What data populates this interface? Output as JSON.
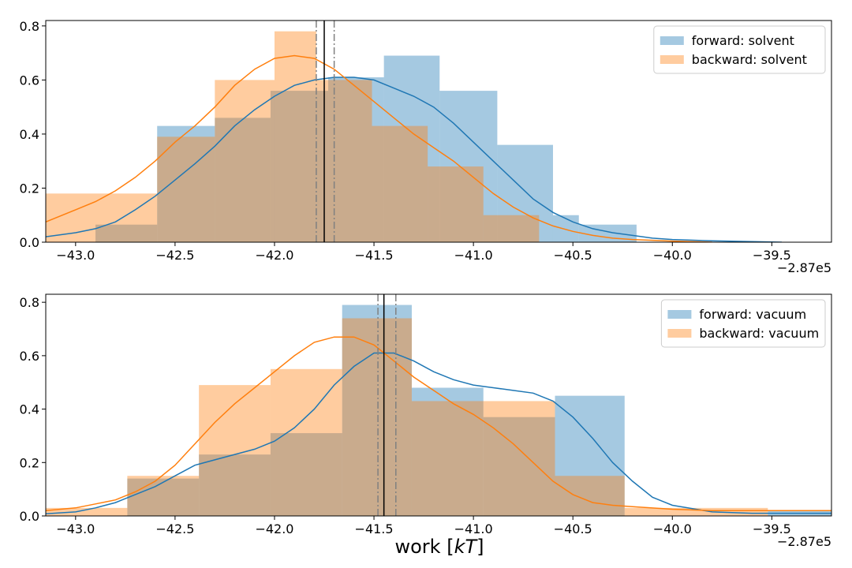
{
  "colors": {
    "forward": "#1f77b4",
    "backward": "#ff7f0e"
  },
  "chart_data": [
    {
      "type": "histogram",
      "title": "",
      "xlabel": "",
      "ylabel": "",
      "xlim": [
        -43.15,
        -39.2
      ],
      "ylim": [
        0,
        0.82
      ],
      "x_offset_label": "−2.87e5",
      "xticks": [
        -43.0,
        -42.5,
        -42.0,
        -41.5,
        -41.0,
        -40.5,
        -40.0,
        -39.5
      ],
      "xtick_labels": [
        "−43.0",
        "−42.5",
        "−42.0",
        "−41.5",
        "−41.0",
        "−40.5",
        "−40.0",
        "−39.5"
      ],
      "yticks": [
        0.0,
        0.2,
        0.4,
        0.6,
        0.8
      ],
      "ytick_labels": [
        "0.0",
        "0.2",
        "0.4",
        "0.6",
        "0.8"
      ],
      "legend": {
        "position": "top-right",
        "entries": [
          "forward: solvent",
          "backward: solvent"
        ]
      },
      "series": [
        {
          "name": "forward: solvent",
          "color_key": "forward",
          "bin_edges": [
            -42.9,
            -42.59,
            -42.3,
            -42.02,
            -41.73,
            -41.45,
            -41.17,
            -40.88,
            -40.6,
            -40.47,
            -40.18
          ],
          "values": [
            0.065,
            0.43,
            0.46,
            0.56,
            0.61,
            0.69,
            0.56,
            0.36,
            0.1,
            0.065
          ],
          "kde": {
            "x": [
              -43.15,
              -43.0,
              -42.9,
              -42.8,
              -42.7,
              -42.6,
              -42.5,
              -42.4,
              -42.3,
              -42.2,
              -42.1,
              -42.0,
              -41.9,
              -41.8,
              -41.7,
              -41.6,
              -41.5,
              -41.4,
              -41.3,
              -41.2,
              -41.1,
              -41.0,
              -40.9,
              -40.8,
              -40.7,
              -40.6,
              -40.5,
              -40.4,
              -40.3,
              -40.2,
              -40.1,
              -40.0,
              -39.8,
              -39.6,
              -39.45
            ],
            "y": [
              0.02,
              0.035,
              0.05,
              0.075,
              0.12,
              0.17,
              0.23,
              0.29,
              0.355,
              0.43,
              0.49,
              0.54,
              0.58,
              0.6,
              0.61,
              0.61,
              0.6,
              0.57,
              0.54,
              0.5,
              0.44,
              0.37,
              0.3,
              0.23,
              0.16,
              0.11,
              0.075,
              0.05,
              0.035,
              0.025,
              0.015,
              0.01,
              0.005,
              0.002,
              0.0
            ]
          }
        },
        {
          "name": "backward: solvent",
          "color_key": "backward",
          "bin_edges": [
            -43.15,
            -42.59,
            -42.3,
            -42.0,
            -41.79,
            -41.51,
            -41.23,
            -40.95,
            -40.67,
            -40.42
          ],
          "values": [
            0.18,
            0.39,
            0.6,
            0.78,
            0.6,
            0.43,
            0.28,
            0.1,
            0.0
          ],
          "kde": {
            "x": [
              -43.15,
              -43.0,
              -42.9,
              -42.8,
              -42.7,
              -42.6,
              -42.5,
              -42.4,
              -42.3,
              -42.2,
              -42.1,
              -42.0,
              -41.9,
              -41.8,
              -41.7,
              -41.6,
              -41.5,
              -41.4,
              -41.3,
              -41.2,
              -41.1,
              -41.0,
              -40.9,
              -40.8,
              -40.7,
              -40.6,
              -40.5,
              -40.4,
              -40.3,
              -40.2,
              -40.0,
              -39.8
            ],
            "y": [
              0.075,
              0.12,
              0.15,
              0.19,
              0.24,
              0.3,
              0.37,
              0.43,
              0.5,
              0.58,
              0.64,
              0.68,
              0.69,
              0.68,
              0.64,
              0.58,
              0.52,
              0.46,
              0.4,
              0.35,
              0.3,
              0.24,
              0.18,
              0.13,
              0.09,
              0.06,
              0.04,
              0.025,
              0.015,
              0.01,
              0.004,
              0.0
            ]
          }
        }
      ],
      "vlines": [
        {
          "x": -41.75,
          "style": "solid",
          "color": "#000000"
        },
        {
          "x": -41.79,
          "style": "dashdot",
          "color": "#808080"
        },
        {
          "x": -41.7,
          "style": "dashdot",
          "color": "#808080"
        }
      ]
    },
    {
      "type": "histogram",
      "title": "",
      "xlabel": "work [kT]",
      "ylabel": "",
      "xlim": [
        -43.15,
        -39.2
      ],
      "ylim": [
        0,
        0.83
      ],
      "x_offset_label": "−2.87e5",
      "xticks": [
        -43.0,
        -42.5,
        -42.0,
        -41.5,
        -41.0,
        -40.5,
        -40.0,
        -39.5
      ],
      "xtick_labels": [
        "−43.0",
        "−42.5",
        "−42.0",
        "−41.5",
        "−41.0",
        "−40.5",
        "−40.0",
        "−39.5"
      ],
      "yticks": [
        0.0,
        0.2,
        0.4,
        0.6,
        0.8
      ],
      "ytick_labels": [
        "0.0",
        "0.2",
        "0.4",
        "0.6",
        "0.8"
      ],
      "legend": {
        "position": "top-right",
        "entries": [
          "forward: vacuum",
          "backward: vacuum"
        ]
      },
      "series": [
        {
          "name": "forward: vacuum",
          "color_key": "forward",
          "bin_edges": [
            -42.74,
            -42.38,
            -42.02,
            -41.66,
            -41.31,
            -40.95,
            -40.59,
            -40.24,
            -39.88,
            -39.52,
            -39.2
          ],
          "values": [
            0.14,
            0.23,
            0.31,
            0.79,
            0.48,
            0.37,
            0.45,
            0.0,
            0.0,
            0.02
          ],
          "kde": {
            "x": [
              -43.15,
              -43.0,
              -42.9,
              -42.8,
              -42.7,
              -42.6,
              -42.5,
              -42.4,
              -42.3,
              -42.2,
              -42.1,
              -42.0,
              -41.9,
              -41.8,
              -41.7,
              -41.6,
              -41.5,
              -41.4,
              -41.3,
              -41.2,
              -41.1,
              -41.0,
              -40.9,
              -40.8,
              -40.7,
              -40.6,
              -40.5,
              -40.4,
              -40.3,
              -40.2,
              -40.1,
              -40.0,
              -39.8,
              -39.6,
              -39.4,
              -39.2
            ],
            "y": [
              0.008,
              0.015,
              0.03,
              0.05,
              0.08,
              0.11,
              0.15,
              0.19,
              0.21,
              0.23,
              0.25,
              0.28,
              0.33,
              0.4,
              0.49,
              0.56,
              0.61,
              0.61,
              0.58,
              0.54,
              0.51,
              0.49,
              0.48,
              0.47,
              0.46,
              0.43,
              0.37,
              0.29,
              0.2,
              0.13,
              0.07,
              0.04,
              0.015,
              0.01,
              0.01,
              0.01
            ]
          }
        },
        {
          "name": "backward: vacuum",
          "color_key": "backward",
          "bin_edges": [
            -43.15,
            -42.74,
            -42.38,
            -42.02,
            -41.66,
            -41.31,
            -40.95,
            -40.59,
            -40.24,
            -39.88,
            -39.52
          ],
          "values": [
            0.03,
            0.15,
            0.49,
            0.55,
            0.74,
            0.43,
            0.43,
            0.15,
            0.03,
            0.03
          ],
          "kde": {
            "x": [
              -43.15,
              -43.0,
              -42.9,
              -42.8,
              -42.7,
              -42.6,
              -42.5,
              -42.4,
              -42.3,
              -42.2,
              -42.1,
              -42.0,
              -41.9,
              -41.8,
              -41.7,
              -41.6,
              -41.5,
              -41.4,
              -41.3,
              -41.2,
              -41.1,
              -41.0,
              -40.9,
              -40.8,
              -40.7,
              -40.6,
              -40.5,
              -40.4,
              -40.3,
              -40.2,
              -40.0,
              -39.8,
              -39.6,
              -39.4,
              -39.2
            ],
            "y": [
              0.02,
              0.03,
              0.045,
              0.06,
              0.09,
              0.13,
              0.19,
              0.27,
              0.35,
              0.42,
              0.48,
              0.54,
              0.6,
              0.65,
              0.67,
              0.67,
              0.64,
              0.58,
              0.52,
              0.47,
              0.42,
              0.38,
              0.33,
              0.27,
              0.2,
              0.13,
              0.08,
              0.05,
              0.04,
              0.035,
              0.025,
              0.02,
              0.02,
              0.02,
              0.02
            ]
          }
        }
      ],
      "vlines": [
        {
          "x": -41.45,
          "style": "solid",
          "color": "#000000"
        },
        {
          "x": -41.48,
          "style": "dashdot",
          "color": "#808080"
        },
        {
          "x": -41.39,
          "style": "dashdot",
          "color": "#808080"
        }
      ]
    }
  ]
}
